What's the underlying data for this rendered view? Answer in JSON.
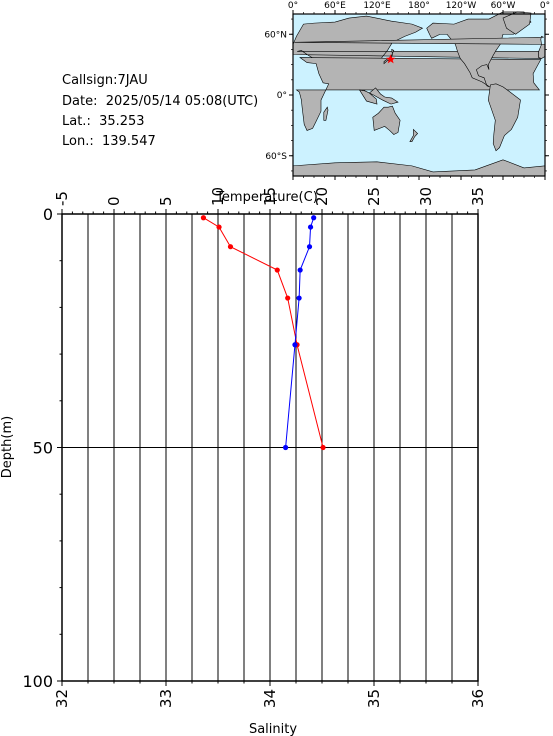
{
  "info": {
    "callsign_line": "Callsign:7JAU",
    "date_line": "Date:  2025/05/14 05:08(UTC)",
    "lat_line": "Lat.:  35.253",
    "lon_line": "Lon.:  139.547"
  },
  "map": {
    "lon_labels": [
      "0°",
      "60°E",
      "120°E",
      "180°",
      "120°W",
      "60°W",
      "0°"
    ],
    "lat_labels": [
      "60°N",
      "0°",
      "60°S"
    ],
    "ocean_color": "#ccf2ff",
    "land_color": "#b4b4b4",
    "marker_color": "#ff0000",
    "marker_lon": 139.547,
    "marker_lat": 35.253
  },
  "chart_data": {
    "type": "line",
    "ylabel": "Depth(m)",
    "top_axis_label": "Temperature(C)",
    "bottom_axis_label": "Salinity",
    "depth_range": [
      0,
      100
    ],
    "depth_ticks": [
      "0",
      "50",
      "100"
    ],
    "temperature_range": [
      -5,
      35
    ],
    "temperature_ticks": [
      "-5",
      "0",
      "5",
      "10",
      "15",
      "20",
      "25",
      "30",
      "35"
    ],
    "salinity_range": [
      32,
      36
    ],
    "salinity_ticks": [
      "32",
      "33",
      "34",
      "35",
      "36"
    ],
    "grid": true,
    "series": [
      {
        "quantity": "temperature",
        "color": "#ff0000",
        "depth": [
          0.8,
          2.8,
          7,
          12,
          18,
          28,
          50
        ],
        "values": [
          8.6,
          10.1,
          11.2,
          15.7,
          16.7,
          17.6,
          20.1
        ]
      },
      {
        "quantity": "salinity",
        "color": "#0000ff",
        "depth": [
          0.8,
          2.8,
          7,
          12,
          18,
          28,
          50
        ],
        "values": [
          34.42,
          34.39,
          34.38,
          34.29,
          34.28,
          34.24,
          34.15
        ]
      }
    ]
  }
}
